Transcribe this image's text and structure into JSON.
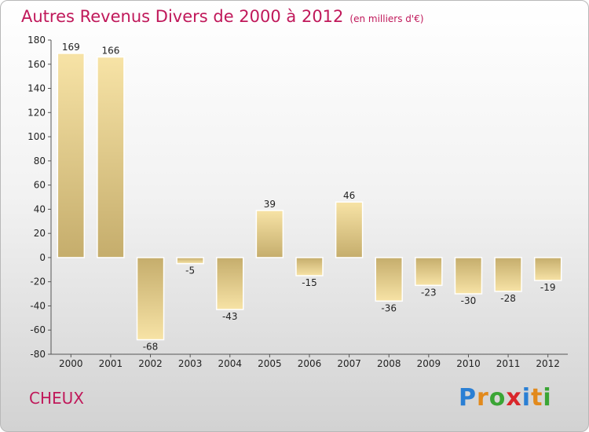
{
  "title": "Autres Revenus Divers de 2000 à 2012",
  "unit": "(en milliers d'€)",
  "place": "CHEUX",
  "brand": {
    "letters": [
      "P",
      "r",
      "o",
      "x",
      "i",
      "t",
      "i"
    ],
    "colors": [
      "#2a7fd4",
      "#e28a1c",
      "#3aa535",
      "#d9262b",
      "#2a7fd4",
      "#e28a1c",
      "#3aa535"
    ]
  },
  "chart_data": {
    "type": "bar",
    "categories": [
      "2000",
      "2001",
      "2002",
      "2003",
      "2004",
      "2005",
      "2006",
      "2007",
      "2008",
      "2009",
      "2010",
      "2011",
      "2012"
    ],
    "values": [
      169,
      166,
      -68,
      -5,
      -43,
      39,
      -15,
      46,
      -36,
      -23,
      -30,
      -28,
      -19
    ],
    "data_labels": [
      "169",
      "166",
      "-68",
      "-5",
      "-43",
      "39",
      "-15",
      "46",
      "-36",
      "-23",
      "-30",
      "-28",
      "-19"
    ],
    "ylim": [
      -80,
      180
    ],
    "yticks": [
      180,
      160,
      140,
      120,
      100,
      80,
      60,
      40,
      20,
      0,
      -20,
      -40,
      -60,
      -80
    ],
    "grid": false,
    "bar_color_light": "#f7e3a6",
    "bar_color_dark": "#c5ad6c"
  }
}
